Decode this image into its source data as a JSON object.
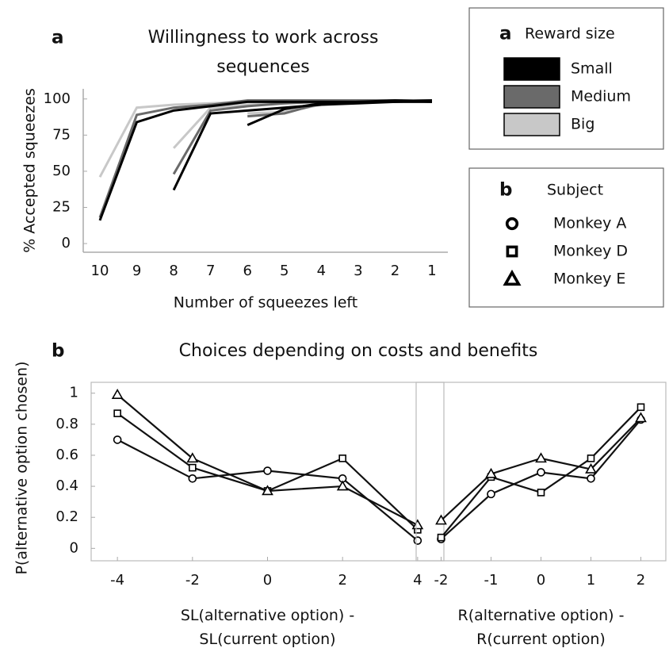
{
  "chart_data": [
    {
      "type": "line",
      "panel_label": "a",
      "title": "Willingness to work across sequences",
      "xlabel": "Number of squeezes left",
      "ylabel": "% Accepted squeezes",
      "categories": [
        "10",
        "9",
        "8",
        "7",
        "6",
        "5",
        "4",
        "3",
        "2",
        "1"
      ],
      "ylim": [
        -6,
        107
      ],
      "yticks": [
        0,
        25,
        50,
        75,
        100
      ],
      "legend": {
        "panel_label": "a",
        "title": "Reward size"
      },
      "series": [
        {
          "name": "Small",
          "color": "#000000",
          "values": [
            [
              16,
              84,
              92,
              95,
              98,
              98,
              98,
              98,
              99,
              98
            ],
            [
              null,
              null,
              37,
              90,
              92,
              94,
              96,
              97,
              98,
              99
            ],
            [
              null,
              null,
              null,
              null,
              82,
              93,
              97,
              98,
              98,
              98
            ]
          ]
        },
        {
          "name": "Medium",
          "color": "#6a6a6a",
          "values": [
            [
              18,
              89,
              94,
              96,
              99,
              99,
              99,
              99,
              99,
              99
            ],
            [
              null,
              null,
              48,
              92,
              95,
              97,
              98,
              98,
              99,
              99
            ],
            [
              null,
              null,
              null,
              null,
              88,
              90,
              97,
              98,
              99,
              99
            ]
          ]
        },
        {
          "name": "Big",
          "color": "#c8c8c8",
          "values": [
            [
              46,
              94,
              96,
              97,
              98,
              99,
              99,
              99,
              99,
              99
            ],
            [
              null,
              null,
              66,
              94,
              96,
              97,
              98,
              99,
              99,
              99
            ],
            [
              null,
              null,
              null,
              null,
              90,
              91,
              96,
              98,
              99,
              99
            ]
          ]
        }
      ]
    },
    {
      "type": "line",
      "panel_label": "b",
      "title": "Choices depending on costs and benefits",
      "ylabel": "P(alternative option chosen)",
      "xlabel": "SL(alternative option) - SL(current option)",
      "x": [
        -4,
        -2,
        0,
        2,
        4
      ],
      "xlim": [
        -4.7,
        4.7
      ],
      "xticks": [
        -4,
        -2,
        0,
        2,
        4
      ],
      "ylim": [
        -0.08,
        1.07
      ],
      "yticks": [
        0,
        0.2,
        0.4,
        0.6,
        0.8,
        1
      ],
      "legend": {
        "panel_label": "b",
        "title": "Subject"
      },
      "series": [
        {
          "name": "Monkey A",
          "marker": "circle",
          "values": [
            0.7,
            0.45,
            0.5,
            0.45,
            0.05
          ]
        },
        {
          "name": "Monkey D",
          "marker": "square",
          "values": [
            0.87,
            0.52,
            0.37,
            0.58,
            0.12
          ]
        },
        {
          "name": "Monkey E",
          "marker": "triangle",
          "values": [
            0.99,
            0.58,
            0.37,
            0.4,
            0.15
          ]
        }
      ]
    },
    {
      "type": "line",
      "xlabel": "R(alternative option) - R(current option)",
      "x": [
        -2,
        -1,
        0,
        1,
        2
      ],
      "xlim": [
        -2.5,
        2.5
      ],
      "xticks": [
        -2,
        -1,
        0,
        1,
        2
      ],
      "ylim": [
        -0.08,
        1.07
      ],
      "series": [
        {
          "marker": "circle",
          "values": [
            0.06,
            0.35,
            0.49,
            0.45,
            0.83
          ]
        },
        {
          "marker": "square",
          "values": [
            0.07,
            0.46,
            0.36,
            0.58,
            0.91
          ]
        },
        {
          "marker": "triangle",
          "values": [
            0.18,
            0.48,
            0.58,
            0.51,
            0.84
          ]
        }
      ]
    }
  ]
}
